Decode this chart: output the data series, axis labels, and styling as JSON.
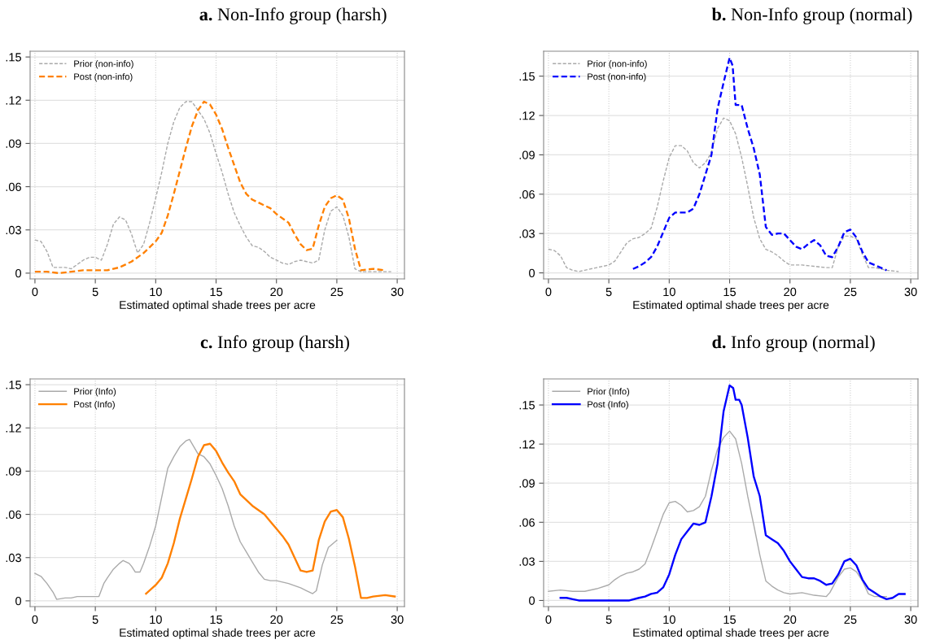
{
  "chart_data": [
    {
      "type": "line",
      "title": "a. Non-Info group (harsh)",
      "xlabel": "Estimated optimal shade trees per acre",
      "xlim": [
        -0.4,
        30.6
      ],
      "ylim": [
        -0.004,
        0.154
      ],
      "xticks": [
        0,
        5,
        10,
        15,
        20,
        25,
        30
      ],
      "yticks": [
        0,
        {
          "value": 0.03,
          "label": ".03"
        },
        {
          "value": 0.06,
          "label": ".06"
        },
        {
          "value": 0.09,
          "label": ".09"
        },
        {
          "value": 0.12,
          "label": ".12"
        },
        {
          "value": 0.15,
          "label": ".15"
        }
      ],
      "grid": true,
      "legend": "top left",
      "series": [
        {
          "name": "Prior (non-info)",
          "color": "#aaaaaa",
          "line_style": "dashed",
          "x": [
            0,
            0.5,
            1,
            1.5,
            2,
            2.5,
            3,
            3.5,
            4,
            4.5,
            5,
            5.5,
            6,
            6.5,
            7,
            7.5,
            8,
            8.5,
            9,
            9.5,
            10,
            10.5,
            11,
            11.5,
            12,
            12.5,
            13,
            13.5,
            14,
            14.5,
            15,
            15.5,
            16,
            16.5,
            17,
            17.5,
            18,
            18.5,
            19,
            19.5,
            20,
            20.5,
            21,
            21.5,
            22,
            22.5,
            23,
            23.5,
            24,
            24.5,
            25,
            25.5,
            26,
            26.5,
            27,
            28,
            29,
            29.5
          ],
          "values": [
            0.023,
            0.022,
            0.015,
            0.004,
            0.004,
            0.004,
            0.003,
            0.006,
            0.009,
            0.011,
            0.011,
            0.009,
            0.02,
            0.034,
            0.039,
            0.037,
            0.027,
            0.014,
            0.02,
            0.035,
            0.052,
            0.07,
            0.09,
            0.105,
            0.115,
            0.119,
            0.119,
            0.113,
            0.107,
            0.097,
            0.083,
            0.07,
            0.055,
            0.042,
            0.033,
            0.025,
            0.019,
            0.018,
            0.015,
            0.011,
            0.009,
            0.007,
            0.006,
            0.008,
            0.009,
            0.008,
            0.007,
            0.009,
            0.03,
            0.043,
            0.046,
            0.04,
            0.025,
            0.003,
            0.001,
            0.001,
            0.001,
            0.001
          ]
        },
        {
          "name": "Post (non-info)",
          "color": "#ff8000",
          "line_style": "dashed",
          "x": [
            0,
            1,
            2,
            3,
            4,
            5,
            6,
            7,
            8,
            9,
            10,
            10.5,
            11,
            11.5,
            12,
            12.5,
            13,
            13.5,
            14,
            14.5,
            15,
            15.5,
            16,
            16.5,
            17,
            17.5,
            18,
            19,
            19.5,
            20,
            21,
            21.5,
            22,
            22.5,
            23,
            23.5,
            24,
            24.5,
            25,
            25.5,
            26,
            26.5,
            27,
            28,
            29
          ],
          "values": [
            0.001,
            0.001,
            0,
            0.001,
            0.002,
            0.002,
            0.002,
            0.004,
            0.008,
            0.014,
            0.022,
            0.028,
            0.04,
            0.055,
            0.071,
            0.087,
            0.102,
            0.113,
            0.119,
            0.117,
            0.11,
            0.1,
            0.087,
            0.075,
            0.063,
            0.055,
            0.051,
            0.047,
            0.045,
            0.041,
            0.035,
            0.027,
            0.02,
            0.016,
            0.017,
            0.033,
            0.046,
            0.052,
            0.054,
            0.051,
            0.038,
            0.017,
            0.002,
            0.003,
            0.002
          ]
        }
      ]
    },
    {
      "type": "line",
      "title": "b. Non-Info group (normal)",
      "xlabel": "Estimated optimal shade trees per acre",
      "xlim": [
        -0.4,
        30.6
      ],
      "ylim": [
        -0.0046,
        0.169
      ],
      "xticks": [
        0,
        5,
        10,
        15,
        20,
        25,
        30
      ],
      "yticks": [
        0,
        {
          "value": 0.03,
          "label": ".03"
        },
        {
          "value": 0.06,
          "label": ".06"
        },
        {
          "value": 0.09,
          "label": ".09"
        },
        {
          "value": 0.12,
          "label": ".12"
        },
        {
          "value": 0.15,
          "label": ".15"
        }
      ],
      "grid": true,
      "legend": "top left",
      "series": [
        {
          "name": "Prior (non-info)",
          "color": "#aaaaaa",
          "line_style": "dashed",
          "x": [
            0,
            0.5,
            1,
            1.5,
            2,
            2.5,
            3,
            4,
            5,
            5.5,
            6,
            6.5,
            7,
            7.5,
            8,
            8.5,
            9,
            9.5,
            10,
            10.5,
            11,
            11.5,
            12,
            12.5,
            13,
            13.5,
            14,
            14.5,
            15,
            15.5,
            16,
            16.5,
            17,
            17.5,
            18,
            18.5,
            19,
            19.5,
            20,
            21,
            22,
            23,
            23.5,
            24,
            24.5,
            25,
            25.5,
            26,
            26.5,
            27,
            28,
            29
          ],
          "values": [
            0.018,
            0.017,
            0.013,
            0.004,
            0.002,
            0.001,
            0.002,
            0.004,
            0.006,
            0.009,
            0.016,
            0.023,
            0.026,
            0.027,
            0.03,
            0.034,
            0.05,
            0.07,
            0.088,
            0.097,
            0.097,
            0.093,
            0.084,
            0.08,
            0.084,
            0.092,
            0.11,
            0.118,
            0.116,
            0.106,
            0.088,
            0.066,
            0.042,
            0.026,
            0.018,
            0.016,
            0.013,
            0.009,
            0.006,
            0.006,
            0.005,
            0.004,
            0.004,
            0.02,
            0.028,
            0.028,
            0.026,
            0.014,
            0.004,
            0.004,
            0.002,
            0.001
          ]
        },
        {
          "name": "Post (non-info)",
          "color": "#0000ff",
          "line_style": "dashed",
          "x": [
            7,
            7.5,
            8,
            8.5,
            9,
            9.5,
            10,
            10.5,
            11,
            11.5,
            12,
            12.5,
            13,
            13.5,
            14,
            14.5,
            15,
            15.25,
            15.5,
            16,
            16.5,
            17,
            17.5,
            18,
            18.5,
            19,
            19.5,
            20,
            20.5,
            21,
            21.5,
            22,
            22.5,
            23,
            23.5,
            24,
            24.5,
            25,
            25.5,
            26,
            26.5,
            27,
            27.5,
            28
          ],
          "values": [
            0.003,
            0.005,
            0.008,
            0.012,
            0.02,
            0.031,
            0.042,
            0.046,
            0.046,
            0.046,
            0.049,
            0.06,
            0.075,
            0.09,
            0.125,
            0.145,
            0.164,
            0.158,
            0.128,
            0.128,
            0.11,
            0.095,
            0.075,
            0.035,
            0.029,
            0.03,
            0.03,
            0.025,
            0.02,
            0.018,
            0.022,
            0.025,
            0.021,
            0.013,
            0.012,
            0.02,
            0.031,
            0.033,
            0.027,
            0.016,
            0.008,
            0.006,
            0.004,
            0.002
          ]
        }
      ]
    },
    {
      "type": "line",
      "title": "c. Info group (harsh)",
      "xlabel": "Estimated optimal shade trees per acre",
      "xlim": [
        -0.4,
        30.6
      ],
      "ylim": [
        -0.004,
        0.154
      ],
      "xticks": [
        0,
        5,
        10,
        15,
        20,
        25,
        30
      ],
      "yticks": [
        0,
        {
          "value": 0.03,
          "label": ".03"
        },
        {
          "value": 0.06,
          "label": ".06"
        },
        {
          "value": 0.09,
          "label": ".09"
        },
        {
          "value": 0.12,
          "label": ".12"
        },
        {
          "value": 0.15,
          "label": ".15"
        }
      ],
      "grid": true,
      "legend": "top left",
      "series": [
        {
          "name": "Prior (Info)",
          "color": "#aaaaaa",
          "line_style": "solid",
          "x": [
            0,
            0.5,
            1,
            1.5,
            1.8,
            2.5,
            3,
            3.5,
            4,
            5,
            5.3,
            5.7,
            6,
            6.5,
            7,
            7.3,
            7.8,
            8,
            8.3,
            8.7,
            9,
            9.5,
            10,
            10.5,
            11,
            11.5,
            12,
            12.5,
            12.8,
            13.5,
            14,
            14.5,
            15,
            15.5,
            16,
            16.5,
            17,
            17.5,
            18,
            18.5,
            19,
            19.5,
            20,
            20.5,
            21,
            22,
            22.5,
            23,
            23.3,
            23.8,
            24.3,
            25
          ],
          "values": [
            0.019,
            0.017,
            0.012,
            0.006,
            0.001,
            0.002,
            0.002,
            0.003,
            0.003,
            0.003,
            0.003,
            0.012,
            0.016,
            0.022,
            0.026,
            0.028,
            0.026,
            0.024,
            0.02,
            0.02,
            0.026,
            0.038,
            0.052,
            0.072,
            0.092,
            0.1,
            0.107,
            0.111,
            0.112,
            0.102,
            0.1,
            0.095,
            0.087,
            0.078,
            0.066,
            0.052,
            0.041,
            0.034,
            0.027,
            0.02,
            0.015,
            0.014,
            0.014,
            0.013,
            0.012,
            0.009,
            0.007,
            0.005,
            0.007,
            0.025,
            0.037,
            0.042
          ]
        },
        {
          "name": "Post (Info)",
          "color": "#ff8000",
          "line_style": "solid",
          "x": [
            9.2,
            10,
            10.5,
            11,
            11.5,
            12,
            12.5,
            13,
            13.5,
            14,
            14.5,
            15,
            15.5,
            16,
            16.5,
            17,
            17.5,
            18,
            18.5,
            19,
            19.5,
            20,
            20.5,
            21,
            21.5,
            22,
            22.5,
            23,
            23.5,
            24,
            24.5,
            25,
            25.5,
            26,
            26.5,
            27,
            27.5,
            28,
            29,
            29.8
          ],
          "values": [
            0.005,
            0.011,
            0.016,
            0.026,
            0.04,
            0.057,
            0.071,
            0.085,
            0.1,
            0.108,
            0.109,
            0.104,
            0.096,
            0.089,
            0.083,
            0.074,
            0.07,
            0.066,
            0.063,
            0.06,
            0.055,
            0.05,
            0.045,
            0.039,
            0.03,
            0.021,
            0.02,
            0.021,
            0.042,
            0.055,
            0.062,
            0.063,
            0.058,
            0.043,
            0.024,
            0.002,
            0.002,
            0.003,
            0.004,
            0.003
          ]
        }
      ]
    },
    {
      "type": "line",
      "title": "d. Info group (normal)",
      "xlabel": "Estimated optimal shade trees per acre",
      "xlim": [
        -0.4,
        30.6
      ],
      "ylim": [
        -0.0047,
        0.17
      ],
      "xticks": [
        0,
        5,
        10,
        15,
        20,
        25,
        30
      ],
      "yticks": [
        0,
        {
          "value": 0.03,
          "label": ".03"
        },
        {
          "value": 0.06,
          "label": ".06"
        },
        {
          "value": 0.09,
          "label": ".09"
        },
        {
          "value": 0.12,
          "label": ".12"
        },
        {
          "value": 0.15,
          "label": ".15"
        }
      ],
      "grid": true,
      "legend": "top left",
      "series": [
        {
          "name": "Prior (Info)",
          "color": "#aaaaaa",
          "line_style": "solid",
          "x": [
            0,
            1,
            2,
            3,
            4,
            5,
            5.5,
            6,
            6.5,
            7,
            7.5,
            8,
            8.5,
            9,
            9.5,
            10,
            10.5,
            11,
            11.5,
            12,
            12.5,
            13,
            13.5,
            14,
            14.5,
            15,
            15.5,
            16,
            16.5,
            17,
            17.5,
            18,
            18.5,
            19,
            19.5,
            20,
            21,
            22,
            23,
            23.3,
            24,
            24.5,
            25,
            25.5,
            26,
            26.5,
            27,
            28
          ],
          "values": [
            0.007,
            0.008,
            0.007,
            0.007,
            0.009,
            0.012,
            0.016,
            0.019,
            0.021,
            0.022,
            0.024,
            0.028,
            0.04,
            0.053,
            0.066,
            0.075,
            0.076,
            0.073,
            0.068,
            0.069,
            0.072,
            0.08,
            0.1,
            0.116,
            0.125,
            0.13,
            0.124,
            0.105,
            0.08,
            0.058,
            0.035,
            0.015,
            0.011,
            0.008,
            0.006,
            0.005,
            0.006,
            0.004,
            0.003,
            0.006,
            0.018,
            0.024,
            0.025,
            0.022,
            0.015,
            0.005,
            0.003,
            0.003
          ]
        },
        {
          "name": "Post (Info)",
          "color": "#0000ff",
          "line_style": "solid",
          "x": [
            1,
            1.5,
            2,
            2.5,
            3,
            4,
            5,
            6,
            6.7,
            7.5,
            8,
            8.5,
            9,
            9.5,
            10,
            10.5,
            11,
            11.5,
            12,
            12.5,
            13,
            13.5,
            14,
            14.5,
            15,
            15.3,
            15.5,
            15.8,
            16,
            16.5,
            17,
            17.5,
            18,
            18.5,
            19,
            19.5,
            20,
            20.5,
            21,
            21.5,
            22,
            22.5,
            23,
            23.5,
            24,
            24.5,
            25,
            25.5,
            26,
            26.5,
            27,
            27.5,
            28,
            28.5,
            29,
            29.5
          ],
          "values": [
            0.002,
            0.002,
            0.001,
            0,
            0,
            0,
            0,
            0,
            0,
            0.002,
            0.003,
            0.005,
            0.006,
            0.01,
            0.02,
            0.035,
            0.047,
            0.053,
            0.059,
            0.058,
            0.06,
            0.08,
            0.105,
            0.145,
            0.165,
            0.163,
            0.154,
            0.154,
            0.15,
            0.125,
            0.095,
            0.08,
            0.05,
            0.047,
            0.044,
            0.038,
            0.03,
            0.024,
            0.018,
            0.017,
            0.017,
            0.015,
            0.012,
            0.013,
            0.02,
            0.03,
            0.032,
            0.027,
            0.016,
            0.009,
            0.006,
            0.003,
            0.001,
            0.002,
            0.005,
            0.005
          ]
        }
      ]
    }
  ]
}
